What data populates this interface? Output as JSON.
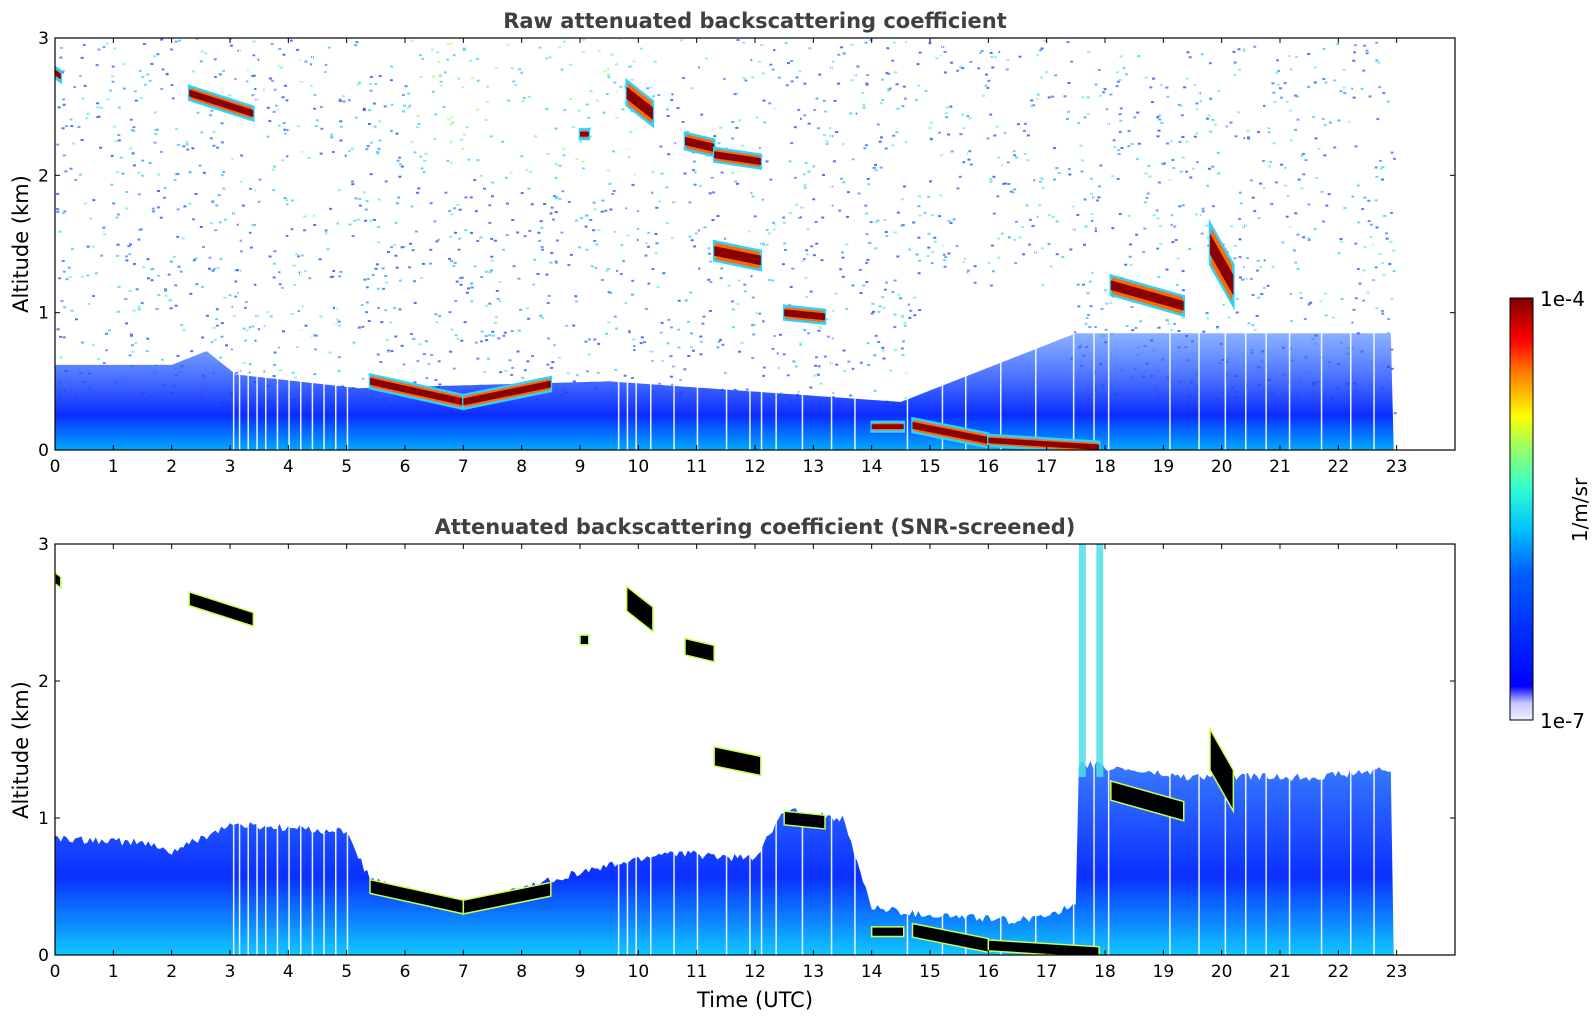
{
  "chart_data": [
    {
      "type": "heatmap",
      "title": "Raw attenuated backscattering coefficient",
      "xlabel": "",
      "ylabel": "Altitude (km)",
      "xlim": [
        0,
        24
      ],
      "ylim": [
        0,
        3
      ],
      "x_ticks": [
        "0",
        "1",
        "2",
        "3",
        "4",
        "5",
        "6",
        "7",
        "8",
        "9",
        "10",
        "11",
        "12",
        "13",
        "14",
        "15",
        "16",
        "17",
        "18",
        "19",
        "20",
        "21",
        "22",
        "23"
      ],
      "y_ticks": [
        "0",
        "1",
        "2",
        "3"
      ],
      "data_end_hour": 22.95,
      "background_layer": [
        {
          "time": 0,
          "top_km": 0.62
        },
        {
          "time": 2,
          "top_km": 0.62
        },
        {
          "time": 2.6,
          "top_km": 0.72
        },
        {
          "time": 3.1,
          "top_km": 0.55
        },
        {
          "time": 5.2,
          "top_km": 0.45
        },
        {
          "time": 9.5,
          "top_km": 0.5
        },
        {
          "time": 14.5,
          "top_km": 0.35
        },
        {
          "time": 17.5,
          "top_km": 0.85
        },
        {
          "time": 22.95,
          "top_km": 0.85
        }
      ],
      "cloud_layers": [
        {
          "t_start": 0.0,
          "t_end": 0.1,
          "alt_start_km": 2.75,
          "alt_end_km": 2.72,
          "thickness_km": 0.08
        },
        {
          "t_start": 2.3,
          "t_end": 3.4,
          "alt_start_km": 2.6,
          "alt_end_km": 2.45,
          "thickness_km": 0.1
        },
        {
          "t_start": 5.4,
          "t_end": 7.0,
          "alt_start_km": 0.5,
          "alt_end_km": 0.35,
          "thickness_km": 0.1
        },
        {
          "t_start": 7.0,
          "t_end": 8.5,
          "alt_start_km": 0.35,
          "alt_end_km": 0.48,
          "thickness_km": 0.1
        },
        {
          "t_start": 9.0,
          "t_end": 9.15,
          "alt_start_km": 2.3,
          "alt_end_km": 2.3,
          "thickness_km": 0.07
        },
        {
          "t_start": 9.8,
          "t_end": 10.25,
          "alt_start_km": 2.6,
          "alt_end_km": 2.45,
          "thickness_km": 0.18
        },
        {
          "t_start": 10.8,
          "t_end": 11.3,
          "alt_start_km": 2.25,
          "alt_end_km": 2.2,
          "thickness_km": 0.12
        },
        {
          "t_start": 11.3,
          "t_end": 12.1,
          "alt_start_km": 2.15,
          "alt_end_km": 2.1,
          "thickness_km": 0.1
        },
        {
          "t_start": 11.3,
          "t_end": 12.1,
          "alt_start_km": 1.45,
          "alt_end_km": 1.38,
          "thickness_km": 0.14
        },
        {
          "t_start": 12.5,
          "t_end": 13.2,
          "alt_start_km": 1.0,
          "alt_end_km": 0.97,
          "thickness_km": 0.1
        },
        {
          "t_start": 14.0,
          "t_end": 14.55,
          "alt_start_km": 0.17,
          "alt_end_km": 0.17,
          "thickness_km": 0.07
        },
        {
          "t_start": 14.7,
          "t_end": 16.0,
          "alt_start_km": 0.18,
          "alt_end_km": 0.07,
          "thickness_km": 0.1
        },
        {
          "t_start": 16.0,
          "t_end": 17.9,
          "alt_start_km": 0.07,
          "alt_end_km": 0.02,
          "thickness_km": 0.08
        },
        {
          "t_start": 18.1,
          "t_end": 19.35,
          "alt_start_km": 1.2,
          "alt_end_km": 1.05,
          "thickness_km": 0.14
        },
        {
          "t_start": 19.8,
          "t_end": 20.2,
          "alt_start_km": 1.5,
          "alt_end_km": 1.2,
          "thickness_km": 0.3
        }
      ],
      "colorbar": {
        "min_label": "1e-7",
        "max_label": "1e-4",
        "units": "1/m/sr",
        "colormap": "jet",
        "scale": "log"
      }
    },
    {
      "type": "heatmap",
      "title": "Attenuated backscattering coefficient (SNR-screened)",
      "xlabel": "Time (UTC)",
      "ylabel": "Altitude (km)",
      "xlim": [
        0,
        24
      ],
      "ylim": [
        0,
        3
      ],
      "x_ticks": [
        "0",
        "1",
        "2",
        "3",
        "4",
        "5",
        "6",
        "7",
        "8",
        "9",
        "10",
        "11",
        "12",
        "13",
        "14",
        "15",
        "16",
        "17",
        "18",
        "19",
        "20",
        "21",
        "22",
        "23"
      ],
      "y_ticks": [
        "0",
        "1",
        "2",
        "3"
      ],
      "data_end_hour": 22.95,
      "screened_layer_top": [
        {
          "time": 0,
          "top_km": 0.85
        },
        {
          "time": 1.5,
          "top_km": 0.82
        },
        {
          "time": 2.0,
          "top_km": 0.75
        },
        {
          "time": 3.0,
          "top_km": 0.95
        },
        {
          "time": 5.0,
          "top_km": 0.9
        },
        {
          "time": 5.4,
          "top_km": 0.55
        },
        {
          "time": 7.0,
          "top_km": 0.35
        },
        {
          "time": 8.5,
          "top_km": 0.55
        },
        {
          "time": 9.5,
          "top_km": 0.65
        },
        {
          "time": 10.5,
          "top_km": 0.75
        },
        {
          "time": 12.0,
          "top_km": 0.7
        },
        {
          "time": 12.5,
          "top_km": 1.05
        },
        {
          "time": 13.5,
          "top_km": 1.0
        },
        {
          "time": 14.0,
          "top_km": 0.35
        },
        {
          "time": 14.7,
          "top_km": 0.3
        },
        {
          "time": 16.5,
          "top_km": 0.25
        },
        {
          "time": 17.5,
          "top_km": 0.35
        },
        {
          "time": 17.55,
          "top_km": 1.4
        },
        {
          "time": 19.3,
          "top_km": 1.3
        },
        {
          "time": 21.5,
          "top_km": 1.3
        },
        {
          "time": 22.95,
          "top_km": 1.35
        }
      ],
      "cloud_layers": [
        {
          "t_start": 0.0,
          "t_end": 0.1,
          "alt_start_km": 2.75,
          "alt_end_km": 2.72,
          "thickness_km": 0.08
        },
        {
          "t_start": 2.3,
          "t_end": 3.4,
          "alt_start_km": 2.6,
          "alt_end_km": 2.45,
          "thickness_km": 0.1
        },
        {
          "t_start": 5.4,
          "t_end": 7.0,
          "alt_start_km": 0.5,
          "alt_end_km": 0.35,
          "thickness_km": 0.1
        },
        {
          "t_start": 7.0,
          "t_end": 8.5,
          "alt_start_km": 0.35,
          "alt_end_km": 0.48,
          "thickness_km": 0.1
        },
        {
          "t_start": 9.0,
          "t_end": 9.15,
          "alt_start_km": 2.3,
          "alt_end_km": 2.3,
          "thickness_km": 0.07
        },
        {
          "t_start": 9.8,
          "t_end": 10.25,
          "alt_start_km": 2.6,
          "alt_end_km": 2.45,
          "thickness_km": 0.18
        },
        {
          "t_start": 10.8,
          "t_end": 11.3,
          "alt_start_km": 2.25,
          "alt_end_km": 2.2,
          "thickness_km": 0.12
        },
        {
          "t_start": 11.3,
          "t_end": 12.1,
          "alt_start_km": 1.45,
          "alt_end_km": 1.38,
          "thickness_km": 0.14
        },
        {
          "t_start": 12.5,
          "t_end": 13.2,
          "alt_start_km": 1.0,
          "alt_end_km": 0.97,
          "thickness_km": 0.1
        },
        {
          "t_start": 14.0,
          "t_end": 14.55,
          "alt_start_km": 0.17,
          "alt_end_km": 0.17,
          "thickness_km": 0.07
        },
        {
          "t_start": 14.7,
          "t_end": 16.0,
          "alt_start_km": 0.18,
          "alt_end_km": 0.07,
          "thickness_km": 0.1
        },
        {
          "t_start": 16.0,
          "t_end": 17.9,
          "alt_start_km": 0.07,
          "alt_end_km": 0.02,
          "thickness_km": 0.08
        },
        {
          "t_start": 18.1,
          "t_end": 19.35,
          "alt_start_km": 1.2,
          "alt_end_km": 1.05,
          "thickness_km": 0.14
        },
        {
          "t_start": 19.8,
          "t_end": 20.2,
          "alt_start_km": 1.5,
          "alt_end_km": 1.2,
          "thickness_km": 0.3
        }
      ],
      "colorbar": {
        "min_label": "1e-7",
        "max_label": "1e-4",
        "units": "1/m/sr",
        "colormap": "jet",
        "scale": "log"
      }
    }
  ],
  "colorbar_min_label": "1e-7",
  "colorbar_max_label": "1e-4",
  "colorbar_units": "1/m/sr",
  "colors": {
    "low": "#0000ff",
    "mid": "#00c8ff",
    "high": "#7f0000",
    "screened_cloud": "#000000"
  }
}
